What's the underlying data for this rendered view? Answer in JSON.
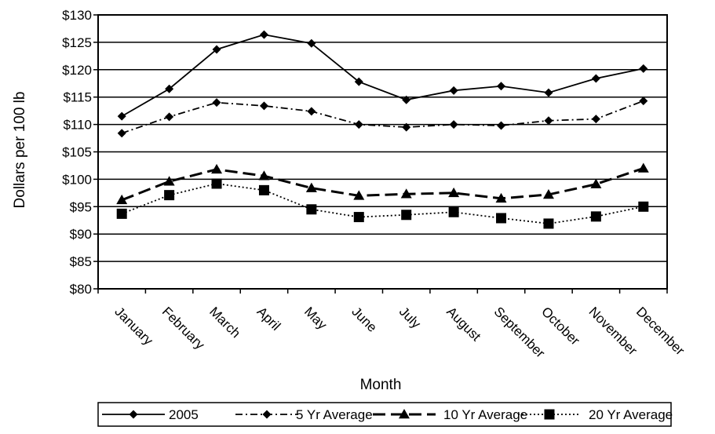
{
  "chart_data": {
    "type": "line",
    "title": "",
    "xlabel": "Month",
    "ylabel": "Dollars per 100 lb",
    "ylim": [
      80,
      130
    ],
    "y_step": 5,
    "y_tick_prefix": "$",
    "grid": "horizontal",
    "legend_position": "bottom",
    "categories": [
      "January",
      "February",
      "March",
      "April",
      "May",
      "June",
      "July",
      "August",
      "September",
      "October",
      "November",
      "December"
    ],
    "series": [
      {
        "name": "2005",
        "marker": "diamond",
        "line_style": "solid",
        "color": "#000000",
        "values": [
          111.5,
          116.5,
          123.7,
          126.4,
          124.8,
          117.8,
          114.5,
          116.2,
          117.0,
          115.8,
          118.4,
          120.2
        ]
      },
      {
        "name": "5 Yr Average",
        "marker": "diamond",
        "line_style": "dash-dot",
        "color": "#000000",
        "values": [
          108.4,
          111.4,
          114.0,
          113.4,
          112.4,
          110.0,
          109.5,
          110.0,
          109.8,
          110.7,
          111.0,
          114.3
        ]
      },
      {
        "name": "10 Yr Average",
        "marker": "triangle",
        "line_style": "long-dash",
        "color": "#000000",
        "values": [
          96.2,
          99.6,
          101.8,
          100.6,
          98.4,
          97.0,
          97.3,
          97.5,
          96.5,
          97.2,
          99.1,
          102.0
        ]
      },
      {
        "name": "20 Yr Average",
        "marker": "square",
        "line_style": "dotted",
        "color": "#000000",
        "values": [
          93.7,
          97.1,
          99.2,
          98.0,
          94.5,
          93.1,
          93.5,
          94.0,
          92.9,
          91.9,
          93.2,
          95.0
        ]
      }
    ]
  }
}
